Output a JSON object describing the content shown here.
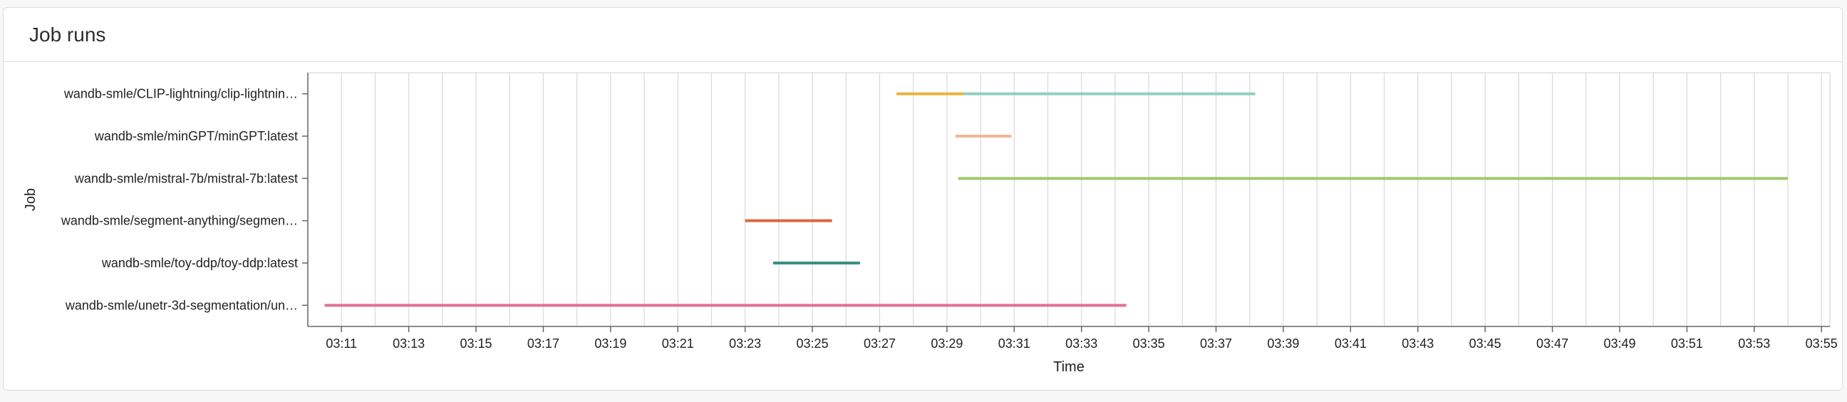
{
  "panel": {
    "title": "Job runs"
  },
  "chart_data": {
    "type": "gantt",
    "title": "",
    "xlabel": "Time",
    "ylabel": "Job",
    "x_ticks": [
      "03:11",
      "03:13",
      "03:15",
      "03:17",
      "03:19",
      "03:21",
      "03:23",
      "03:25",
      "03:27",
      "03:29",
      "03:31",
      "03:33",
      "03:35",
      "03:37",
      "03:39",
      "03:41",
      "03:43",
      "03:45",
      "03:47",
      "03:49",
      "03:51",
      "03:53",
      "03:55"
    ],
    "x_range": [
      "03:10:00",
      "03:55:15"
    ],
    "grid": true,
    "jobs": [
      "wandb-smle/CLIP-lightning/clip-lightnin…",
      "wandb-smle/minGPT/minGPT:latest",
      "wandb-smle/mistral-7b/mistral-7b:latest",
      "wandb-smle/segment-anything/segmen…",
      "wandb-smle/toy-ddp/toy-ddp:latest",
      "wandb-smle/unetr-3d-segmentation/un…"
    ],
    "runs": [
      {
        "job": 0,
        "start": "03:27:30",
        "end": "03:29:30",
        "color": "#e8b33d"
      },
      {
        "job": 0,
        "start": "03:29:30",
        "end": "03:38:10",
        "color": "#8fcfbf"
      },
      {
        "job": 1,
        "start": "03:29:15",
        "end": "03:30:55",
        "color": "#efb898"
      },
      {
        "job": 2,
        "start": "03:29:20",
        "end": "03:54:00",
        "color": "#9ec86a"
      },
      {
        "job": 3,
        "start": "03:23:00",
        "end": "03:25:35",
        "color": "#d46b3a"
      },
      {
        "job": 4,
        "start": "03:23:50",
        "end": "03:26:25",
        "color": "#3d8f84"
      },
      {
        "job": 5,
        "start": "03:10:30",
        "end": "03:34:20",
        "color": "#e0719a"
      }
    ]
  }
}
